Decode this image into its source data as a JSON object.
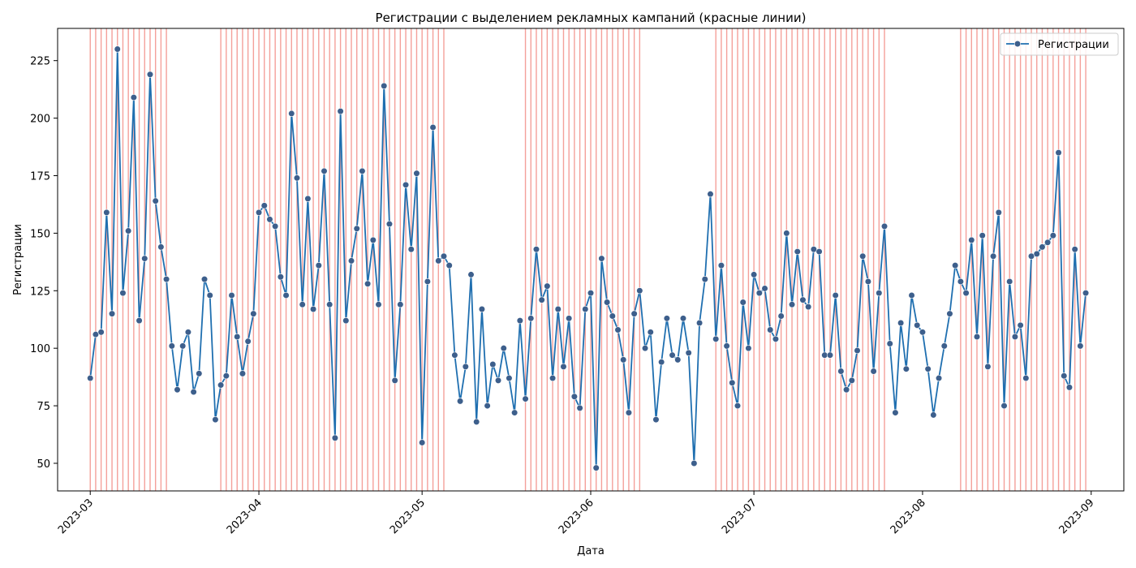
{
  "chart_data": {
    "type": "line",
    "title": "Регистрации с выделением рекламных кампаний (красные линии)",
    "xlabel": "Дата",
    "ylabel": "Регистрации",
    "x_start": "2023-03-01",
    "x_tick_labels": [
      "2023-03",
      "2023-04",
      "2023-05",
      "2023-06",
      "2023-07",
      "2023-08",
      "2023-09"
    ],
    "x_tick_dates": [
      "2023-03-01",
      "2023-04-01",
      "2023-05-01",
      "2023-06-01",
      "2023-07-01",
      "2023-08-01",
      "2023-09-01"
    ],
    "xlim": [
      "2023-02-23",
      "2023-09-07"
    ],
    "ylim": [
      38,
      239
    ],
    "y_ticks": [
      50,
      75,
      100,
      125,
      150,
      175,
      200,
      225
    ],
    "legend": {
      "position": "top-right",
      "label": "Регистрации"
    },
    "campaign_color": "#f4a09a",
    "line_color": "#1f6fb0",
    "marker_color": "#3d5f8c",
    "campaign_periods": [
      {
        "start": "2023-03-01",
        "end": "2023-03-15"
      },
      {
        "start": "2023-03-25",
        "end": "2023-05-05"
      },
      {
        "start": "2023-05-20",
        "end": "2023-06-10"
      },
      {
        "start": "2023-06-24",
        "end": "2023-07-25"
      },
      {
        "start": "2023-08-08",
        "end": "2023-08-31"
      }
    ],
    "series": [
      {
        "name": "Регистрации",
        "values": [
          87,
          106,
          107,
          159,
          115,
          230,
          124,
          151,
          209,
          112,
          139,
          219,
          164,
          144,
          130,
          101,
          82,
          101,
          107,
          81,
          89,
          130,
          123,
          69,
          84,
          88,
          123,
          105,
          89,
          103,
          115,
          159,
          162,
          156,
          153,
          131,
          123,
          202,
          174,
          119,
          165,
          117,
          136,
          177,
          119,
          61,
          203,
          112,
          138,
          152,
          177,
          128,
          147,
          119,
          214,
          154,
          86,
          119,
          171,
          143,
          176,
          59,
          129,
          196,
          138,
          140,
          136,
          97,
          77,
          92,
          132,
          68,
          117,
          75,
          93,
          86,
          100,
          87,
          72,
          112,
          78,
          113,
          143,
          121,
          127,
          87,
          117,
          92,
          113,
          79,
          74,
          117,
          124,
          48,
          139,
          120,
          114,
          108,
          95,
          72,
          115,
          125,
          100,
          107,
          69,
          94,
          113,
          97,
          95,
          113,
          98,
          50,
          111,
          130,
          167,
          104,
          136,
          101,
          85,
          75,
          120,
          100,
          132,
          124,
          126,
          108,
          104,
          114,
          150,
          119,
          142,
          121,
          118,
          143,
          142,
          97,
          97,
          123,
          90,
          82,
          86,
          99,
          140,
          129,
          90,
          124,
          153,
          102,
          72,
          111,
          91,
          123,
          110,
          107,
          91,
          71,
          87,
          101,
          115,
          136,
          129,
          124,
          147,
          105,
          149,
          92,
          140,
          159,
          75,
          129,
          105,
          110,
          87,
          140,
          141,
          144,
          146,
          149,
          185,
          88,
          83,
          143,
          101,
          124
        ]
      }
    ]
  }
}
